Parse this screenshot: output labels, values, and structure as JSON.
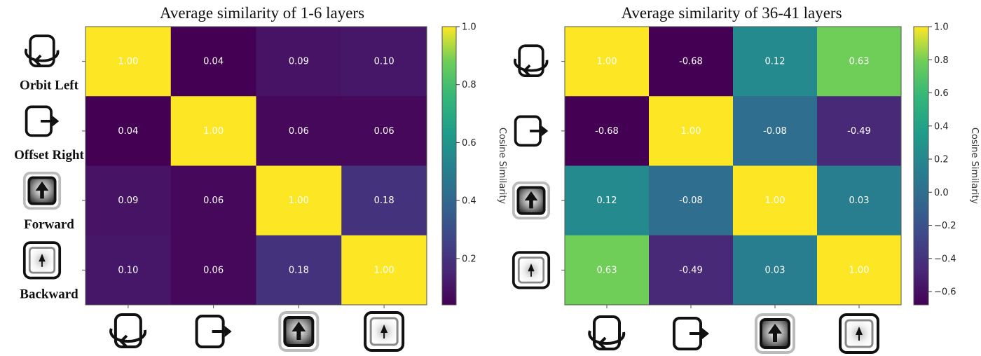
{
  "chart_data": [
    {
      "type": "heatmap",
      "title": "Average similarity of 1-6 layers",
      "rows": [
        "Orbit Left",
        "Offset Right",
        "Forward",
        "Backward"
      ],
      "row_icons": [
        "orbit-left-icon",
        "offset-right-icon",
        "forward-icon",
        "backward-icon"
      ],
      "col_icons": [
        "orbit-left-icon",
        "offset-right-icon",
        "forward-icon",
        "backward-icon"
      ],
      "values": [
        [
          1.0,
          0.04,
          0.09,
          0.1
        ],
        [
          0.04,
          1.0,
          0.06,
          0.06
        ],
        [
          0.09,
          0.06,
          1.0,
          0.18
        ],
        [
          0.1,
          0.06,
          0.18,
          1.0
        ]
      ],
      "labels": [
        [
          "1.00",
          "0.04",
          "0.09",
          "0.10"
        ],
        [
          "0.04",
          "1.00",
          "0.06",
          "0.06"
        ],
        [
          "0.09",
          "0.06",
          "1.00",
          "0.18"
        ],
        [
          "0.10",
          "0.06",
          "0.18",
          "1.00"
        ]
      ],
      "colormap": "viridis",
      "vmin": 0.04,
      "vmax": 1.0,
      "colorbar": {
        "label": "Cosine Similarity",
        "ticks": [
          0.2,
          0.4,
          0.6,
          0.8,
          1.0
        ],
        "tick_labels": [
          "0.2",
          "0.4",
          "0.6",
          "0.8",
          "1.0"
        ]
      }
    },
    {
      "type": "heatmap",
      "title": "Average similarity of 36-41 layers",
      "row_icons": [
        "orbit-left-icon",
        "offset-right-icon",
        "forward-icon",
        "backward-icon"
      ],
      "col_icons": [
        "orbit-left-icon",
        "offset-right-icon",
        "forward-icon",
        "backward-icon"
      ],
      "values": [
        [
          1.0,
          -0.68,
          0.12,
          0.63
        ],
        [
          -0.68,
          1.0,
          -0.08,
          -0.49
        ],
        [
          0.12,
          -0.08,
          1.0,
          0.03
        ],
        [
          0.63,
          -0.49,
          0.03,
          1.0
        ]
      ],
      "labels": [
        [
          "1.00",
          "-0.68",
          "0.12",
          "0.63"
        ],
        [
          "-0.68",
          "1.00",
          "-0.08",
          "-0.49"
        ],
        [
          "0.12",
          "-0.08",
          "1.00",
          "0.03"
        ],
        [
          "0.63",
          "-0.49",
          "0.03",
          "1.00"
        ]
      ],
      "colormap": "viridis",
      "vmin": -0.68,
      "vmax": 1.0,
      "colorbar": {
        "label": "Cosine Similarity",
        "ticks": [
          -0.6,
          -0.4,
          -0.2,
          0.0,
          0.2,
          0.4,
          0.6,
          0.8,
          1.0
        ],
        "tick_labels": [
          "−0.6",
          "−0.4",
          "−0.2",
          "0.0",
          "0.2",
          "0.4",
          "0.6",
          "0.8",
          "1.0"
        ]
      }
    }
  ]
}
